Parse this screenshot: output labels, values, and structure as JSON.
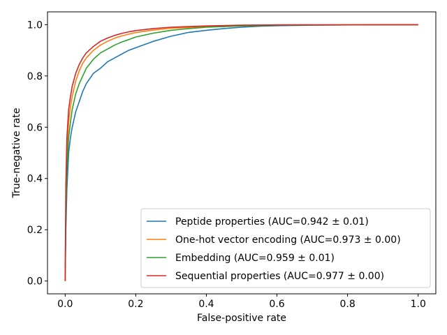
{
  "chart_data": {
    "type": "line",
    "title": "",
    "xlabel": "False-positive rate",
    "ylabel": "True-negative rate",
    "xlim": [
      -0.05,
      1.05
    ],
    "ylim": [
      -0.05,
      1.05
    ],
    "xticks": [
      0.0,
      0.2,
      0.4,
      0.6,
      0.8,
      1.0
    ],
    "yticks": [
      0.0,
      0.2,
      0.4,
      0.6,
      0.8,
      1.0
    ],
    "xtick_labels": [
      "0.0",
      "0.2",
      "0.4",
      "0.6",
      "0.8",
      "1.0"
    ],
    "ytick_labels": [
      "0.0",
      "0.2",
      "0.4",
      "0.6",
      "0.8",
      "1.0"
    ],
    "grid": false,
    "legend": "lower-right",
    "series": [
      {
        "name": "Peptide properties (AUC=0.942 ± 0.01)",
        "color": "#1f77b4",
        "x": [
          0,
          0.002,
          0.005,
          0.01,
          0.015,
          0.02,
          0.03,
          0.04,
          0.05,
          0.06,
          0.08,
          0.1,
          0.12,
          0.14,
          0.16,
          0.18,
          0.2,
          0.25,
          0.3,
          0.35,
          0.4,
          0.45,
          0.5,
          0.55,
          0.6,
          0.7,
          0.8,
          1.0
        ],
        "y": [
          0,
          0.2,
          0.36,
          0.5,
          0.56,
          0.6,
          0.66,
          0.7,
          0.74,
          0.77,
          0.81,
          0.83,
          0.855,
          0.87,
          0.885,
          0.9,
          0.91,
          0.935,
          0.955,
          0.97,
          0.978,
          0.985,
          0.99,
          0.994,
          0.996,
          0.998,
          0.999,
          1.0
        ]
      },
      {
        "name": "One-hot vector encoding (AUC=0.973 ± 0.00)",
        "color": "#ff7f0e",
        "x": [
          0,
          0.002,
          0.005,
          0.01,
          0.015,
          0.02,
          0.03,
          0.04,
          0.05,
          0.06,
          0.08,
          0.1,
          0.12,
          0.14,
          0.16,
          0.18,
          0.2,
          0.25,
          0.3,
          0.4,
          0.5,
          0.6,
          1.0
        ],
        "y": [
          0,
          0.3,
          0.5,
          0.62,
          0.68,
          0.72,
          0.78,
          0.82,
          0.85,
          0.87,
          0.9,
          0.92,
          0.935,
          0.947,
          0.956,
          0.963,
          0.969,
          0.979,
          0.986,
          0.993,
          0.997,
          0.999,
          1.0
        ]
      },
      {
        "name": "Embedding (AUC=0.959 ± 0.01)",
        "color": "#2ca02c",
        "x": [
          0,
          0.002,
          0.005,
          0.01,
          0.015,
          0.02,
          0.03,
          0.04,
          0.05,
          0.06,
          0.08,
          0.1,
          0.12,
          0.14,
          0.16,
          0.18,
          0.2,
          0.25,
          0.3,
          0.35,
          0.4,
          0.5,
          0.6,
          0.8,
          1.0
        ],
        "y": [
          0,
          0.25,
          0.44,
          0.56,
          0.62,
          0.67,
          0.73,
          0.77,
          0.8,
          0.83,
          0.865,
          0.89,
          0.905,
          0.92,
          0.932,
          0.942,
          0.952,
          0.967,
          0.978,
          0.985,
          0.99,
          0.995,
          0.998,
          0.999,
          1.0
        ]
      },
      {
        "name": "Sequential properties (AUC=0.977 ± 0.00)",
        "color": "#d62728",
        "x": [
          0,
          0.002,
          0.005,
          0.01,
          0.015,
          0.02,
          0.03,
          0.04,
          0.05,
          0.06,
          0.08,
          0.1,
          0.12,
          0.14,
          0.16,
          0.18,
          0.2,
          0.25,
          0.3,
          0.4,
          0.5,
          0.6,
          1.0
        ],
        "y": [
          0,
          0.38,
          0.56,
          0.67,
          0.72,
          0.76,
          0.81,
          0.845,
          0.87,
          0.89,
          0.915,
          0.935,
          0.948,
          0.958,
          0.966,
          0.972,
          0.977,
          0.985,
          0.99,
          0.995,
          0.998,
          0.999,
          1.0
        ]
      }
    ]
  }
}
